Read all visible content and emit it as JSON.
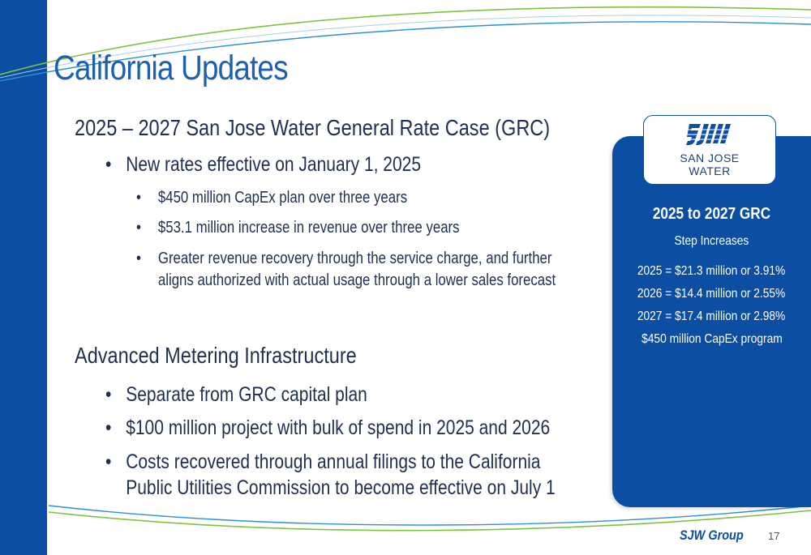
{
  "slide": {
    "title": "California Updates",
    "page_number": "17",
    "footer_logo": "SJW Group"
  },
  "sections": [
    {
      "heading": "2025 – 2027 San Jose Water General Rate Case (GRC)",
      "bullets": [
        {
          "text": "New rates effective on January 1, 2025",
          "sub": [
            "$450 million CapEx plan over three years",
            "$53.1 million increase in revenue over three years",
            "Greater revenue recovery through the service charge, and further",
            "aligns authorized with actual usage through a lower sales forecast"
          ]
        }
      ]
    },
    {
      "heading": "Advanced Metering Infrastructure",
      "bullets": [
        {
          "text": "Separate from GRC capital plan"
        },
        {
          "text": "$100 million project with bulk of spend in 2025 and 2026"
        },
        {
          "text": "Costs recovered through annual filings to the California"
        },
        {
          "text": "Public Utilities Commission to become effective on July 1"
        }
      ]
    }
  ],
  "sidebar": {
    "logo_line1": "SAN JOSE",
    "logo_line2": "WATER",
    "title": "2025 to 2027 GRC",
    "subtitle": "Step Increases",
    "lines": [
      "2025 = $21.3 million or 3.91%",
      "2026 = $14.4 million or 2.55%",
      "2027 = $17.4 million or 2.98%",
      "$450 million CapEx program"
    ]
  },
  "bullet_glyph": "•",
  "colors": {
    "brand_blue": "#0b4ea2",
    "title_blue": "#1d5fb0",
    "body_text": "#1f2f4f"
  }
}
